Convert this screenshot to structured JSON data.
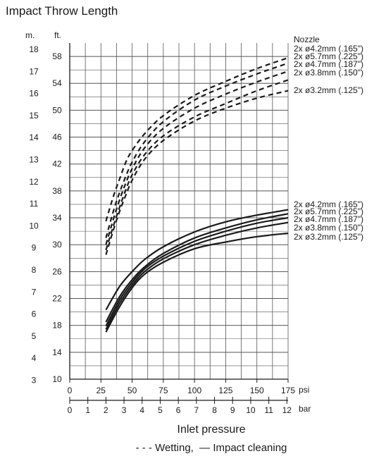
{
  "chart_data": {
    "type": "line",
    "title": "Impact Throw Length",
    "y_unit_left": "m.",
    "y_unit_right": "ft.",
    "y_left_ticks": [
      "3",
      "4",
      "5",
      "6",
      "7",
      "8",
      "9",
      "10",
      "11",
      "12",
      "13",
      "14",
      "15",
      "16",
      "17",
      "18"
    ],
    "y_right_ticks": [
      "10",
      "14",
      "18",
      "22",
      "26",
      "30",
      "34",
      "38",
      "42",
      "46",
      "50",
      "54",
      "58"
    ],
    "ylim_ft": [
      10,
      60
    ],
    "xlabel": "Inlet pressure",
    "x_unit_psi": "psi",
    "x_unit_bar": "bar",
    "x_psi_ticks": [
      "0",
      "25",
      "50",
      "75",
      "100",
      "125",
      "150",
      "175"
    ],
    "x_bar_ticks": [
      "0",
      "1",
      "2",
      "3",
      "4",
      "5",
      "6",
      "7",
      "8",
      "9",
      "10",
      "11",
      "12"
    ],
    "xlim_psi": [
      0,
      175
    ],
    "grid": true,
    "legend_title": "Nozzle",
    "legend_note": "- - - Wetting,  — Impact cleaning",
    "series": [
      {
        "name": "2x ø4.2mm (.165\")",
        "style": "dashed",
        "group": "Wetting",
        "x": [
          29,
          35,
          40,
          45,
          50,
          60,
          75,
          100,
          125,
          150,
          175
        ],
        "y": [
          33.5,
          37.2,
          39.8,
          42.3,
          44.0,
          46.5,
          49.2,
          52.2,
          54.3,
          56.2,
          57.8
        ]
      },
      {
        "name": "2x ø5.7mm (.225\")",
        "style": "dashed",
        "group": "Wetting",
        "x": [
          29,
          35,
          40,
          45,
          50,
          60,
          75,
          100,
          125,
          150,
          175
        ],
        "y": [
          31.0,
          35.0,
          37.8,
          40.2,
          42.3,
          45.3,
          48.3,
          51.5,
          53.6,
          55.4,
          57.0
        ]
      },
      {
        "name": "2x ø4.7mm (.187\")",
        "style": "dashed",
        "group": "Wetting",
        "x": [
          29,
          35,
          40,
          45,
          50,
          60,
          75,
          100,
          125,
          150,
          175
        ],
        "y": [
          30.0,
          33.8,
          36.7,
          39.2,
          41.3,
          44.4,
          47.3,
          50.3,
          52.4,
          54.2,
          55.8
        ]
      },
      {
        "name": "2x ø3.8mm (.150\")",
        "style": "dashed",
        "group": "Wetting",
        "x": [
          29,
          35,
          40,
          45,
          50,
          60,
          75,
          100,
          125,
          150,
          175
        ],
        "y": [
          29.2,
          32.8,
          35.6,
          38.2,
          40.4,
          43.4,
          46.2,
          49.0,
          51.0,
          52.9,
          54.5
        ]
      },
      {
        "name": "2x ø3.2mm (.125\")",
        "style": "dashed",
        "group": "Wetting",
        "x": [
          29,
          35,
          40,
          45,
          50,
          60,
          75,
          100,
          125,
          150,
          175
        ],
        "y": [
          28.5,
          32.2,
          35.0,
          37.4,
          39.6,
          42.7,
          45.5,
          48.4,
          50.3,
          51.8,
          52.9
        ]
      },
      {
        "name": "2x ø4.2mm (.165\")",
        "style": "solid",
        "group": "Impact cleaning",
        "x": [
          29,
          40,
          50,
          60,
          75,
          100,
          125,
          150,
          175
        ],
        "y": [
          20.3,
          23.8,
          26.0,
          27.8,
          29.7,
          31.9,
          33.4,
          34.4,
          35.2
        ]
      },
      {
        "name": "2x ø5.7mm (.225\")",
        "style": "solid",
        "group": "Impact cleaning",
        "x": [
          29,
          40,
          50,
          60,
          75,
          100,
          125,
          150,
          175
        ],
        "y": [
          18.5,
          22.3,
          24.8,
          26.7,
          28.7,
          31.0,
          32.5,
          33.7,
          34.6
        ]
      },
      {
        "name": "2x ø4.7mm (.187\")",
        "style": "solid",
        "group": "Impact cleaning",
        "x": [
          29,
          40,
          50,
          60,
          75,
          100,
          125,
          150,
          175
        ],
        "y": [
          17.9,
          21.8,
          24.4,
          26.4,
          28.3,
          30.5,
          32.0,
          33.2,
          34.0
        ]
      },
      {
        "name": "2x ø3.8mm (.150\")",
        "style": "solid",
        "group": "Impact cleaning",
        "x": [
          29,
          40,
          50,
          60,
          75,
          100,
          125,
          150,
          175
        ],
        "y": [
          17.4,
          21.3,
          24.0,
          26.0,
          27.9,
          30.0,
          31.4,
          32.5,
          33.3
        ]
      },
      {
        "name": "2x ø3.2mm (.125\")",
        "style": "solid",
        "group": "Impact cleaning",
        "x": [
          29,
          40,
          50,
          60,
          75,
          100,
          125,
          150,
          175
        ],
        "y": [
          17.0,
          20.8,
          23.6,
          25.6,
          27.4,
          29.4,
          30.4,
          31.2,
          31.7
        ]
      }
    ]
  }
}
